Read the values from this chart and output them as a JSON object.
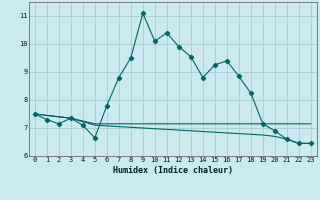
{
  "xlabel": "Humidex (Indice chaleur)",
  "background_color": "#cce9f0",
  "grid_color": "#aaccd4",
  "line_color": "#006666",
  "xlim": [
    -0.5,
    23.5
  ],
  "ylim": [
    6,
    11.5
  ],
  "xticks": [
    0,
    1,
    2,
    3,
    4,
    5,
    6,
    7,
    8,
    9,
    10,
    11,
    12,
    13,
    14,
    15,
    16,
    17,
    18,
    19,
    20,
    21,
    22,
    23
  ],
  "yticks": [
    6,
    7,
    8,
    9,
    10,
    11
  ],
  "line1_x": [
    0,
    1,
    2,
    3,
    4,
    5,
    6,
    7,
    8,
    9,
    10,
    11,
    12,
    13,
    14,
    15,
    16,
    17,
    18,
    19,
    20,
    21,
    22,
    23
  ],
  "line1_y": [
    7.5,
    7.3,
    7.15,
    7.35,
    7.1,
    6.65,
    7.8,
    8.8,
    9.5,
    11.1,
    10.1,
    10.4,
    9.9,
    9.55,
    8.8,
    9.25,
    9.4,
    8.85,
    8.25,
    7.15,
    6.9,
    6.6,
    6.45,
    6.45
  ],
  "line2_x": [
    0,
    3,
    5,
    19,
    23
  ],
  "line2_y": [
    7.5,
    7.35,
    7.15,
    7.15,
    7.15
  ],
  "line3_x": [
    0,
    3,
    5,
    19,
    20,
    21,
    22,
    23
  ],
  "line3_y": [
    7.5,
    7.35,
    7.1,
    6.75,
    6.7,
    6.6,
    6.45,
    6.45
  ]
}
